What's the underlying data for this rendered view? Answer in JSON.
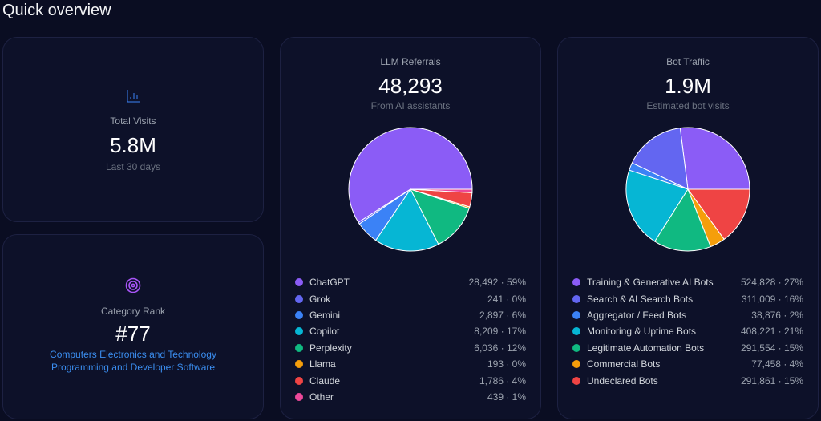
{
  "page_title": "Quick overview",
  "total_visits": {
    "icon": "bar-chart-icon",
    "label": "Total Visits",
    "value": "5.8M",
    "sub": "Last 30 days"
  },
  "category_rank": {
    "icon": "target-icon",
    "label": "Category Rank",
    "value": "#77",
    "link1": "Computers Electronics and Technology",
    "link2": "Programming and Developer Software"
  },
  "llm": {
    "title": "LLM Referrals",
    "value": "48,293",
    "sub": "From AI assistants"
  },
  "bots": {
    "title": "Bot Traffic",
    "value": "1.9M",
    "sub": "Estimated bot visits"
  },
  "chart_data": [
    {
      "type": "pie",
      "title": "LLM Referrals",
      "start": "east",
      "direction": "counterclockwise",
      "series": [
        {
          "name": "ChatGPT",
          "value": 28492,
          "label": "28,492 · 59%",
          "color": "#8b5cf6"
        },
        {
          "name": "Grok",
          "value": 241,
          "label": "241 · 0%",
          "color": "#6366f1"
        },
        {
          "name": "Gemini",
          "value": 2897,
          "label": "2,897 · 6%",
          "color": "#3b82f6"
        },
        {
          "name": "Copilot",
          "value": 8209,
          "label": "8,209 · 17%",
          "color": "#06b6d4"
        },
        {
          "name": "Perplexity",
          "value": 6036,
          "label": "6,036 · 12%",
          "color": "#10b981"
        },
        {
          "name": "Llama",
          "value": 193,
          "label": "193 · 0%",
          "color": "#f59e0b"
        },
        {
          "name": "Claude",
          "value": 1786,
          "label": "1,786 · 4%",
          "color": "#ef4444"
        },
        {
          "name": "Other",
          "value": 439,
          "label": "439 · 1%",
          "color": "#ec4899"
        }
      ]
    },
    {
      "type": "pie",
      "title": "Bot Traffic",
      "start": "east",
      "direction": "counterclockwise",
      "series": [
        {
          "name": "Training & Generative AI Bots",
          "value": 524828,
          "label": "524,828 · 27%",
          "color": "#8b5cf6"
        },
        {
          "name": "Search & AI Search Bots",
          "value": 311009,
          "label": "311,009 · 16%",
          "color": "#6366f1"
        },
        {
          "name": "Aggregator / Feed Bots",
          "value": 38876,
          "label": "38,876 · 2%",
          "color": "#3b82f6"
        },
        {
          "name": "Monitoring & Uptime Bots",
          "value": 408221,
          "label": "408,221 · 21%",
          "color": "#06b6d4"
        },
        {
          "name": "Legitimate Automation Bots",
          "value": 291554,
          "label": "291,554 · 15%",
          "color": "#10b981"
        },
        {
          "name": "Commercial Bots",
          "value": 77458,
          "label": "77,458 · 4%",
          "color": "#f59e0b"
        },
        {
          "name": "Undeclared Bots",
          "value": 291861,
          "label": "291,861 · 15%",
          "color": "#ef4444"
        }
      ]
    }
  ]
}
